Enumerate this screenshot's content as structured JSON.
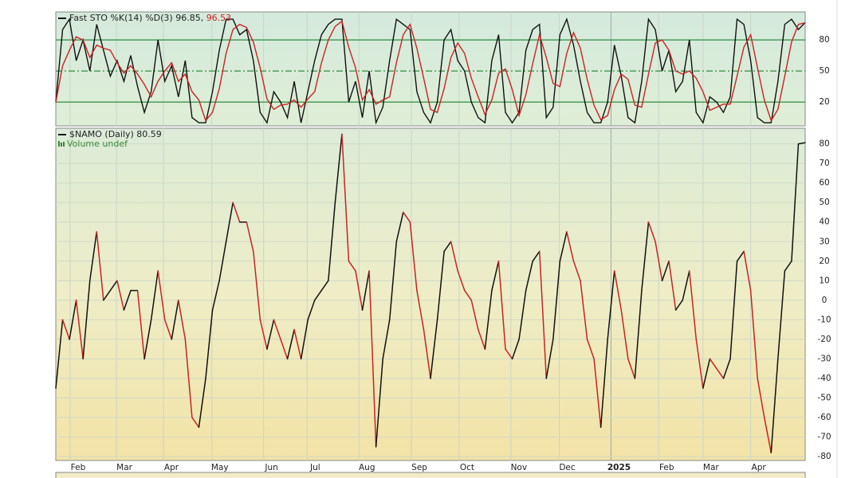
{
  "chart_data": [
    {
      "type": "line",
      "title": "Fast STO %K(14) %D(3) 96.85,",
      "title_value": "96.53",
      "xlim": [
        0,
        110
      ],
      "ylim": [
        -3,
        107
      ],
      "yticks": [
        20,
        50,
        80
      ],
      "grid": true,
      "series": [
        {
          "name": "%K",
          "color": "#111111",
          "values": [
            20,
            90,
            100,
            60,
            80,
            50,
            95,
            70,
            45,
            60,
            40,
            65,
            35,
            10,
            30,
            80,
            40,
            55,
            25,
            60,
            5,
            0,
            0,
            30,
            70,
            100,
            100,
            85,
            90,
            60,
            10,
            0,
            30,
            20,
            5,
            40,
            0,
            30,
            60,
            85,
            95,
            100,
            100,
            20,
            40,
            5,
            50,
            0,
            15,
            60,
            100,
            95,
            90,
            30,
            10,
            0,
            20,
            80,
            90,
            60,
            50,
            20,
            5,
            0,
            60,
            85,
            10,
            0,
            10,
            70,
            90,
            95,
            5,
            15,
            85,
            100,
            75,
            40,
            10,
            0,
            0,
            20,
            75,
            45,
            5,
            0,
            40,
            100,
            90,
            50,
            70,
            30,
            40,
            80,
            10,
            0,
            25,
            20,
            10,
            25,
            100,
            95,
            60,
            5,
            0,
            0,
            40,
            95,
            100,
            90,
            96.85
          ]
        },
        {
          "name": "%D",
          "color": "#cc2222",
          "values": [
            20,
            55,
            70,
            83,
            80,
            63,
            75,
            72,
            70,
            58,
            48,
            55,
            47,
            37,
            25,
            40,
            50,
            58,
            40,
            47,
            30,
            22,
            2,
            10,
            33,
            67,
            90,
            95,
            92,
            78,
            53,
            23,
            13,
            17,
            18,
            22,
            15,
            23,
            30,
            58,
            80,
            93,
            98,
            73,
            53,
            22,
            32,
            18,
            22,
            25,
            58,
            85,
            95,
            72,
            43,
            13,
            10,
            33,
            63,
            77,
            67,
            43,
            25,
            8,
            22,
            48,
            52,
            32,
            7,
            27,
            57,
            85,
            63,
            38,
            35,
            67,
            87,
            72,
            42,
            17,
            3,
            7,
            32,
            47,
            42,
            17,
            15,
            47,
            77,
            80,
            70,
            50,
            47,
            50,
            43,
            30,
            12,
            15,
            18,
            18,
            45,
            73,
            85,
            53,
            22,
            2,
            13,
            45,
            78,
            95,
            96.53
          ]
        }
      ]
    },
    {
      "type": "updown-line",
      "title": "$NAMO (Daily) 80.59",
      "subtitle": "Volume undef",
      "xlim": [
        0,
        110
      ],
      "xticks": [
        {
          "value": 2.1,
          "label": "Feb"
        },
        {
          "value": 8.9,
          "label": "Mar"
        },
        {
          "value": 15.8,
          "label": "Apr"
        },
        {
          "value": 22.9,
          "label": "May"
        },
        {
          "value": 30.5,
          "label": "Jun"
        },
        {
          "value": 36.9,
          "label": "Jul"
        },
        {
          "value": 44.5,
          "label": "Aug"
        },
        {
          "value": 52.2,
          "label": "Sep"
        },
        {
          "value": 59.2,
          "label": "Oct"
        },
        {
          "value": 66.8,
          "label": "Nov"
        },
        {
          "value": 73.9,
          "label": "Dec"
        },
        {
          "value": 81.5,
          "label": "2025"
        },
        {
          "value": 88.5,
          "label": "Feb"
        },
        {
          "value": 95,
          "label": "Mar"
        },
        {
          "value": 102,
          "label": "Apr"
        }
      ],
      "ylim": [
        -82,
        88
      ],
      "yticks": [
        80,
        70,
        60,
        50,
        40,
        30,
        20,
        10,
        0,
        -10,
        -20,
        -30,
        -40,
        -50,
        -60,
        -70,
        -80
      ],
      "grid": true,
      "series": [
        {
          "name": "$NAMO",
          "color": "#cc2222",
          "up_color": "#111111",
          "values": [
            -45,
            -10,
            -20,
            0,
            -30,
            10,
            35,
            0,
            5,
            10,
            -5,
            5,
            5,
            -30,
            -10,
            15,
            -10,
            -20,
            0,
            -20,
            -60,
            -65,
            -40,
            -5,
            10,
            30,
            50,
            40,
            40,
            25,
            -10,
            -25,
            -10,
            -20,
            -30,
            -15,
            -30,
            -10,
            0,
            5,
            10,
            50,
            85,
            20,
            15,
            -5,
            15,
            -75,
            -30,
            -10,
            30,
            45,
            40,
            5,
            -15,
            -40,
            -10,
            25,
            30,
            15,
            5,
            0,
            -15,
            -25,
            5,
            20,
            -25,
            -30,
            -20,
            5,
            20,
            25,
            -40,
            -20,
            20,
            35,
            20,
            10,
            -20,
            -30,
            -65,
            -20,
            15,
            -5,
            -30,
            -40,
            5,
            40,
            30,
            10,
            20,
            -5,
            0,
            15,
            -20,
            -45,
            -30,
            -35,
            -40,
            -30,
            20,
            25,
            5,
            -40,
            -60,
            -78,
            -30,
            15,
            20,
            80,
            80.59
          ]
        }
      ]
    }
  ]
}
